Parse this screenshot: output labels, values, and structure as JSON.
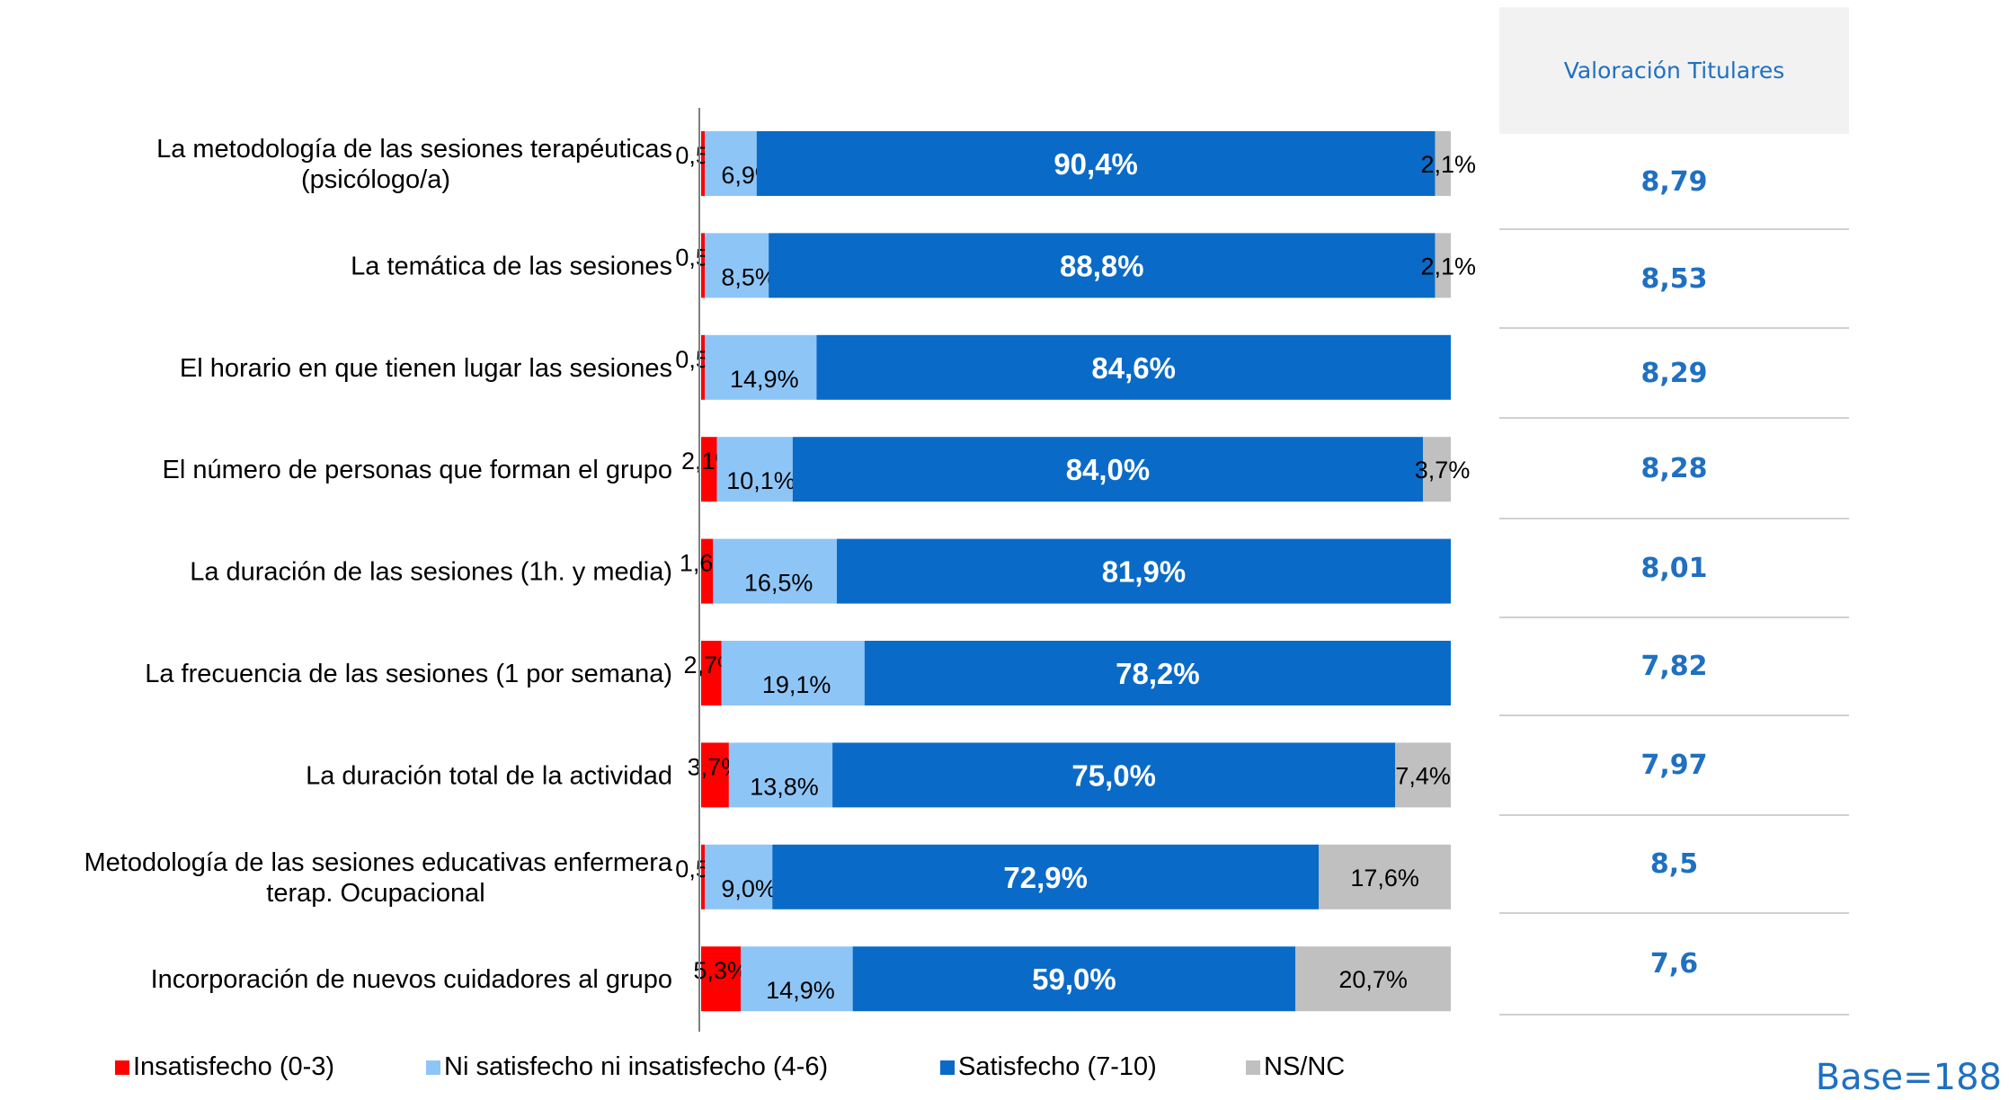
{
  "chart_data": {
    "type": "bar",
    "orientation": "horizontal",
    "stacked": true,
    "percent": true,
    "categories": [
      "La metodología de las sesiones terapéuticas\n(psicólogo/a)",
      "La temática de las sesiones",
      "El horario en que tienen lugar las sesiones",
      "El número de personas que forman el grupo",
      "La duración de las sesiones (1h. y media)",
      "La frecuencia de las sesiones (1 por semana)",
      "La duración total de la actividad",
      "Metodología de las sesiones educativas enfermera\nterap. Ocupacional",
      "Incorporación de nuevos cuidadores al grupo"
    ],
    "series": [
      {
        "name": "Insatisfecho (0-3)",
        "color": "#ff0000",
        "values": [
          0.5,
          0.5,
          0.5,
          2.1,
          1.6,
          2.7,
          3.7,
          0.5,
          5.3
        ],
        "labels": [
          "0,5%",
          "0,5%",
          "0,5%",
          "2,1%",
          "1,6%",
          "2,7%",
          "3,7%",
          "0,5%",
          "5,3%"
        ]
      },
      {
        "name": "Ni satisfecho ni insatisfecho (4-6)",
        "color": "#8ec5f7",
        "values": [
          6.9,
          8.5,
          14.9,
          10.1,
          16.5,
          19.1,
          13.8,
          9.0,
          14.9
        ],
        "labels": [
          "6,9%",
          "8,5%",
          "14,9%",
          "10,1%",
          "16,5%",
          "19,1%",
          "13,8%",
          "9,0%",
          "14,9%"
        ]
      },
      {
        "name": "Satisfecho (7-10)",
        "color": "#0a6ac7",
        "values": [
          90.4,
          88.8,
          84.6,
          84.0,
          81.9,
          78.2,
          75.0,
          72.9,
          59.0
        ],
        "labels": [
          "90,4%",
          "88,8%",
          "84,6%",
          "84,0%",
          "81,9%",
          "78,2%",
          "75,0%",
          "72,9%",
          "59,0%"
        ]
      },
      {
        "name": "NS/NC",
        "color": "#c0c0c0",
        "values": [
          2.1,
          2.1,
          0,
          3.7,
          0,
          0,
          7.4,
          17.6,
          20.7
        ],
        "labels": [
          "2,1%",
          "2,1%",
          "",
          "3,7%",
          "",
          "",
          "7,4%",
          "17,6%",
          "20,7%"
        ]
      }
    ],
    "xlim": [
      0,
      100
    ],
    "grid": false,
    "legend": "bottom"
  },
  "scores": {
    "header": "Valoración Titulares",
    "values": [
      "8,79",
      "8,53",
      "8,29",
      "8,28",
      "8,01",
      "7,82",
      "7,97",
      "8,5",
      "7,6"
    ]
  },
  "base_note": "Base=188"
}
